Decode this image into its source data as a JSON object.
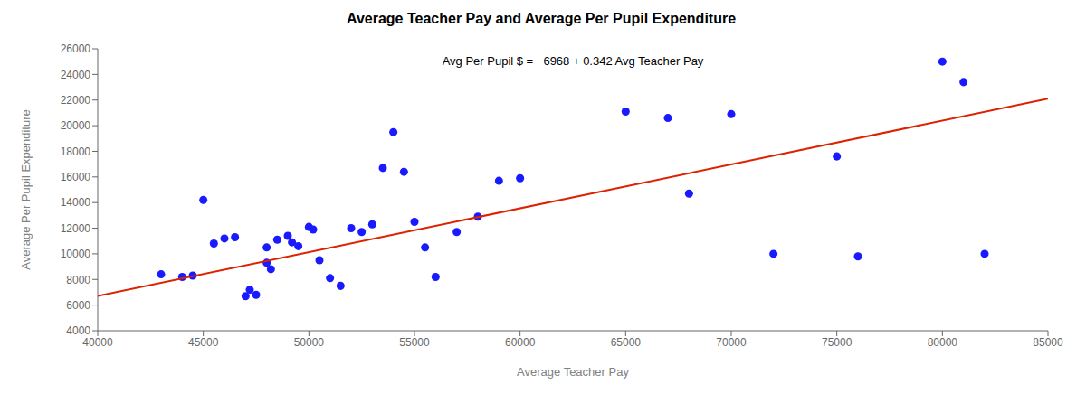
{
  "chart_data": {
    "type": "scatter",
    "title": "Average Teacher Pay and Average Per Pupil Expenditure",
    "xlabel": "Average Teacher Pay",
    "ylabel": "Average Per Pupil Expenditure",
    "annotation": "Avg Per Pupil $ =  −6968 + 0.342 Avg Teacher Pay",
    "xlim": [
      40000,
      85000
    ],
    "ylim": [
      4000,
      26000
    ],
    "xticks": [
      40000,
      45000,
      50000,
      55000,
      60000,
      65000,
      70000,
      75000,
      80000,
      85000
    ],
    "yticks": [
      4000,
      6000,
      8000,
      10000,
      12000,
      14000,
      16000,
      18000,
      20000,
      22000,
      24000,
      26000
    ],
    "grid": false,
    "series": [
      {
        "type": "scatter",
        "color": "#1a1aff",
        "x": [
          43000,
          44500,
          45000,
          45500,
          46000,
          46500,
          47000,
          47200,
          47500,
          48000,
          48200,
          48500,
          49000,
          49200,
          49500,
          50000,
          50200,
          50500,
          51000,
          51500,
          52000,
          52500,
          53000,
          53500,
          54000,
          54500,
          55000,
          55500,
          56000,
          57000,
          58000,
          59000,
          60000,
          65000,
          67000,
          68000,
          70000,
          72000,
          75000,
          76000,
          80000,
          81000,
          82000,
          44000,
          48000
        ],
        "values": [
          8400,
          8300,
          14200,
          10800,
          11200,
          11300,
          6700,
          7200,
          6800,
          9300,
          8800,
          11100,
          11400,
          10900,
          10600,
          12100,
          11900,
          9500,
          8100,
          7500,
          12000,
          11700,
          12300,
          16700,
          19500,
          16400,
          12500,
          10500,
          8200,
          11700,
          12900,
          15700,
          15900,
          21100,
          20600,
          14700,
          20900,
          10000,
          17600,
          9800,
          25000,
          23400,
          10000,
          8200,
          10500
        ]
      },
      {
        "type": "line",
        "color": "#dd2200",
        "x": [
          40000,
          85000
        ],
        "values": [
          6712,
          22102
        ]
      }
    ]
  }
}
